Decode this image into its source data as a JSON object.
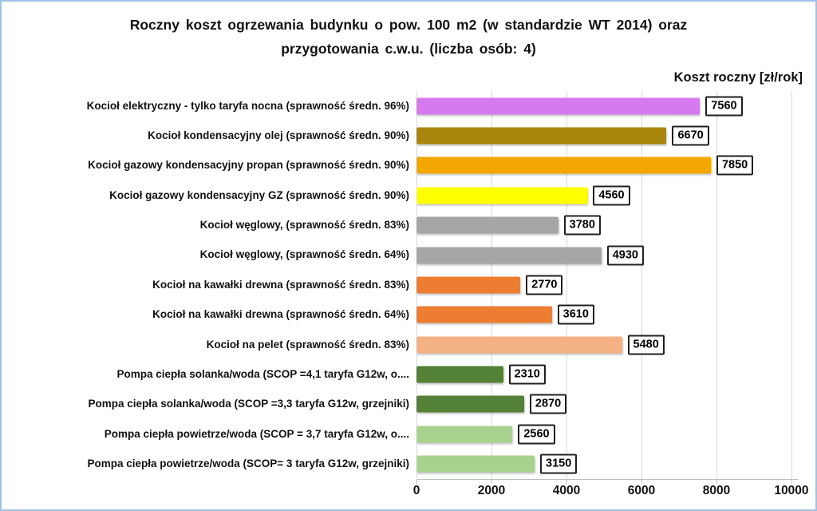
{
  "window": {
    "background": "#ffffff",
    "frame_color": "#9dc3e6"
  },
  "chart_data": {
    "type": "bar",
    "orientation": "horizontal",
    "title": "Roczny koszt ogrzewania budynku o pow. 100 m2 (w standardzie WT 2014) oraz przygotowania c.w.u. (liczba osób: 4)",
    "axis_title": "Koszt roczny [zł/rok]",
    "categories": [
      "Kocioł elektryczny - tylko taryfa nocna (sprawność średn. 96%)",
      "Kocioł kondensacyjny olej (sprawność średn. 90%)",
      "Kocioł gazowy kondensacyjny propan (sprawność średn. 90%)",
      "Kocioł gazowy kondensacyjny GZ (sprawność średn. 90%)",
      "Kocioł węglowy,  (sprawność średn. 83%)",
      "Kocioł węglowy,  (sprawność średn. 64%)",
      "Kocioł na kawałki drewna (sprawność średn. 83%)",
      "Kocioł na kawałki drewna (sprawność średn. 64%)",
      "Kocioł na pelet (sprawność średn. 83%)",
      "Pompa ciepła solanka/woda (SCOP =4,1 taryfa G12w, o....",
      "Pompa ciepła solanka/woda (SCOP =3,3 taryfa G12w, grzejniki)",
      "Pompa ciepła powietrze/woda (SCOP = 3,7 taryfa G12w, o....",
      "Pompa ciepła powietrze/woda (SCOP= 3 taryfa G12w, grzejniki)"
    ],
    "values": [
      7560,
      6670,
      7850,
      4560,
      3780,
      4930,
      2770,
      3610,
      5480,
      2310,
      2870,
      2560,
      3150
    ],
    "data_labels": [
      "7560",
      "6670",
      "7850",
      "4560",
      "3780",
      "4930",
      "2770",
      "3610",
      "5480",
      "2310",
      "2870",
      "2560",
      "3150"
    ],
    "bar_colors": [
      "#d779ef",
      "#a8860b",
      "#f2a702",
      "#ffff00",
      "#a6a6a6",
      "#a6a6a6",
      "#ed7d31",
      "#ed7d31",
      "#f4b183",
      "#538135",
      "#538135",
      "#a9d18e",
      "#a9d18e"
    ],
    "x_ticks": [
      "0",
      "2000",
      "4000",
      "6000",
      "8000",
      "10000"
    ],
    "xlim": [
      0,
      10000
    ],
    "grid": true,
    "legend": "none",
    "grid_color": "#d9d9d9",
    "axis_color": "#bfbfbf",
    "label_box_border": "#1f1f1f"
  }
}
